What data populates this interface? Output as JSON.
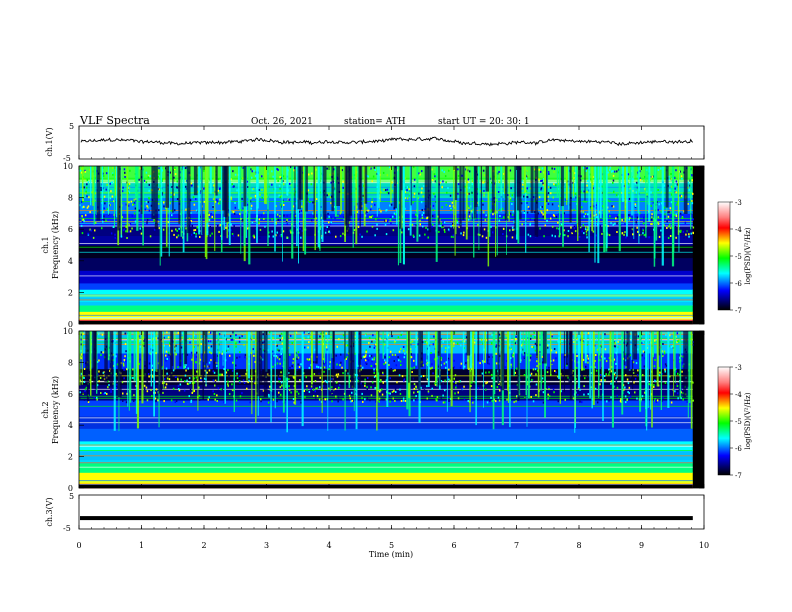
{
  "header": {
    "title": "VLF  Spectra",
    "date": "Oct. 26, 2021",
    "station": "station= ATH",
    "start": "start  UT  =   20: 30: 1"
  },
  "colorbar": {
    "label": "log(PSD)(V²/Hz)",
    "ticks": [
      "-3",
      "-4",
      "-5",
      "-6",
      "-7"
    ],
    "colors": [
      "#ffffff",
      "#ff0000",
      "#ffff00",
      "#00ff00",
      "#00ffff",
      "#0000ff",
      "#000000"
    ]
  },
  "chart_data": [
    {
      "type": "line",
      "panel": "ch1-waveform",
      "ylabel": "ch.1(V)",
      "ylim": [
        -5,
        5
      ],
      "yticks": [
        "5",
        "-5"
      ],
      "mean_value": 0.2,
      "xlim": [
        0,
        10
      ]
    },
    {
      "type": "heatmap",
      "panel": "ch1-spectrogram",
      "ylabel": "Frequency  (kHz)",
      "channel_label": "ch.1",
      "ylim": [
        0,
        10
      ],
      "yticks": [
        "0",
        "2",
        "4",
        "6",
        "8",
        "10"
      ],
      "clim": [
        -7,
        -3
      ],
      "xlim": [
        0,
        10
      ]
    },
    {
      "type": "heatmap",
      "panel": "ch2-spectrogram",
      "ylabel": "Frequency  (kHz)",
      "channel_label": "ch.2",
      "ylim": [
        0,
        10
      ],
      "yticks": [
        "0",
        "2",
        "4",
        "6",
        "8",
        "10"
      ],
      "clim": [
        -7,
        -3
      ],
      "xlim": [
        0,
        10
      ]
    },
    {
      "type": "line",
      "panel": "ch3-waveform",
      "ylabel": "ch.3(V)",
      "ylim": [
        -5,
        5
      ],
      "yticks": [
        "5",
        "-5"
      ],
      "mean_value": -1.8,
      "xlim": [
        0,
        10
      ]
    }
  ],
  "xaxis": {
    "label": "Time  (min)",
    "ticks": [
      "0",
      "1",
      "2",
      "3",
      "4",
      "5",
      "6",
      "7",
      "8",
      "9",
      "10"
    ],
    "data_end": 9.82
  }
}
